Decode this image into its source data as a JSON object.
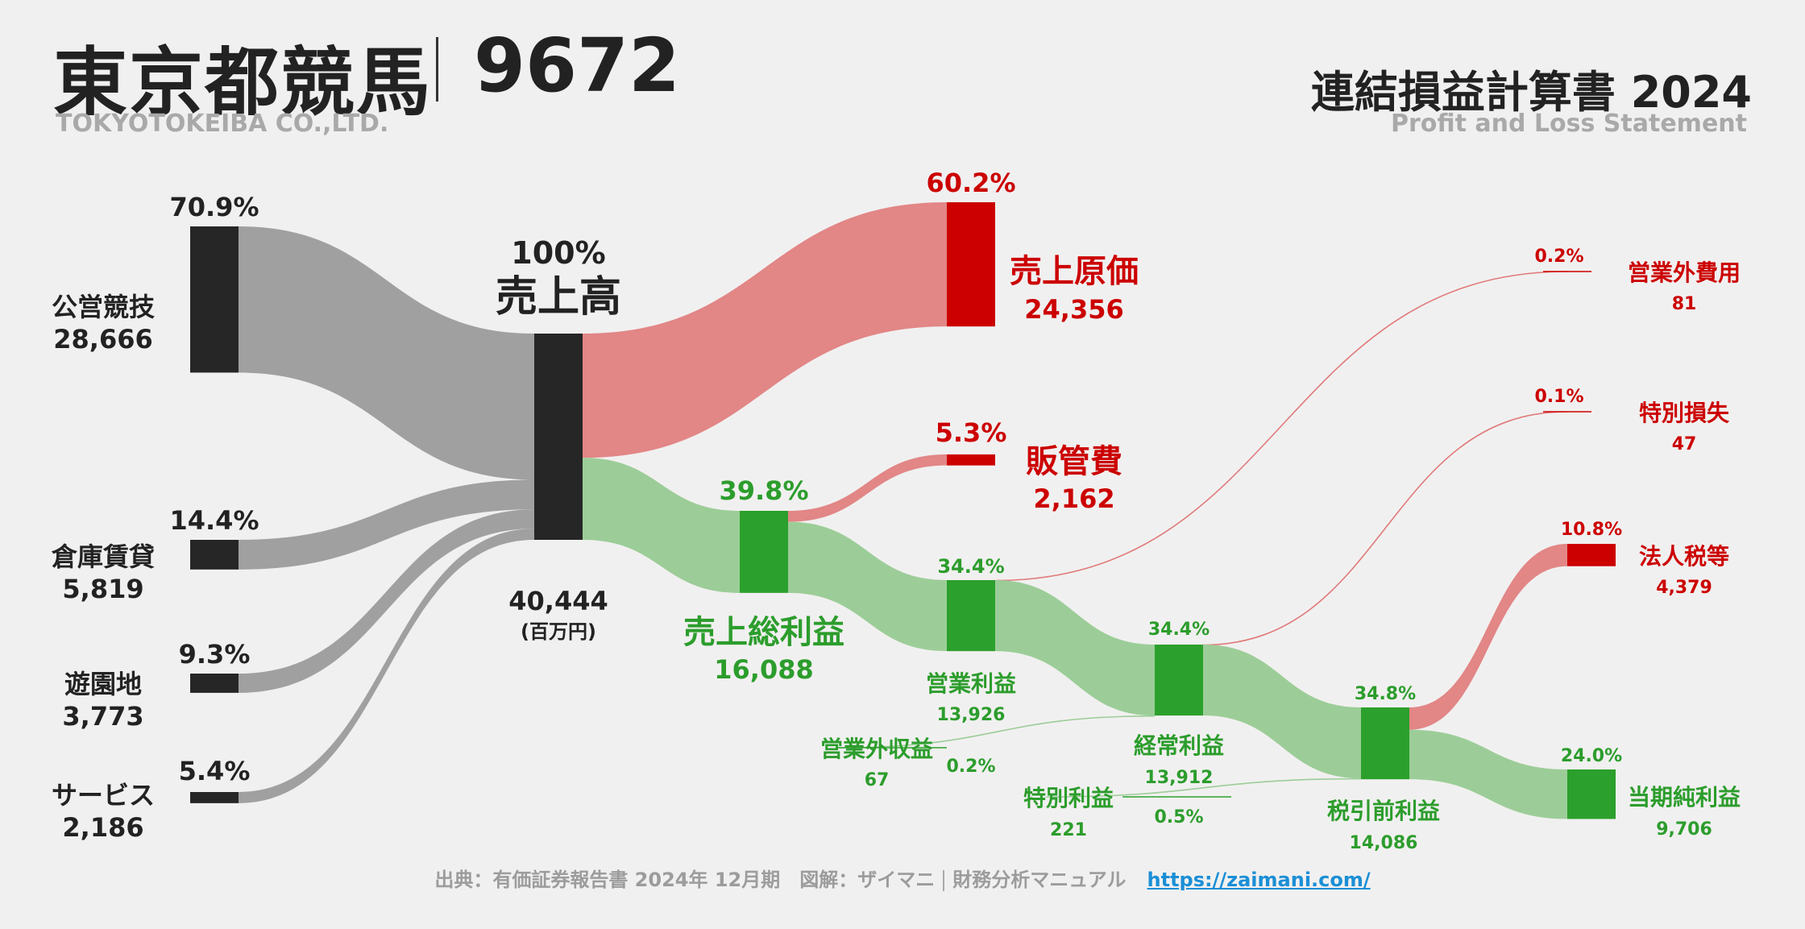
{
  "header": {
    "company": "東京都競馬",
    "code": "9672",
    "company_en": "TOKYOTOKEIBA CO.,LTD.",
    "statement": "連結損益計算書 2024",
    "statement_en": "Profit and Loss Statement"
  },
  "footer": {
    "source": "出典：有価証券報告書 2024年 12月期　図解：ザイマニ",
    "brand": "財務分析マニュアル",
    "url": "https://zaimani.com/"
  },
  "colors": {
    "node_dark": "#262626",
    "node_red": "#cc0000",
    "node_green": "#2ca02c",
    "flow_gray": "#a0a0a0",
    "flow_red": "#e28686",
    "flow_green": "#9ccd98",
    "text_red": "#cc0000",
    "text_green": "#2c9d2c",
    "text_dark": "#222222"
  },
  "chart_data": {
    "type": "sankey",
    "unit": "(百万円)",
    "nodes": [
      {
        "id": "koei",
        "label": "公営競技",
        "value": 28666,
        "pct": "70.9%"
      },
      {
        "id": "soko",
        "label": "倉庫賃貸",
        "value": 5819,
        "pct": "14.4%"
      },
      {
        "id": "yuen",
        "label": "遊園地",
        "value": 3773,
        "pct": "9.3%"
      },
      {
        "id": "service",
        "label": "サービス",
        "value": 2186,
        "pct": "5.4%"
      },
      {
        "id": "revenue",
        "label": "売上高",
        "value": 40444,
        "pct": "100%"
      },
      {
        "id": "cogs",
        "label": "売上原価",
        "value": 24356,
        "pct": "60.2%"
      },
      {
        "id": "gross",
        "label": "売上総利益",
        "value": 16088,
        "pct": "39.8%"
      },
      {
        "id": "sga",
        "label": "販管費",
        "value": 2162,
        "pct": "5.3%"
      },
      {
        "id": "op",
        "label": "営業利益",
        "value": 13926,
        "pct": "34.4%"
      },
      {
        "id": "nonop_inc",
        "label": "営業外収益",
        "value": 67,
        "pct": "0.2%"
      },
      {
        "id": "nonop_exp",
        "label": "営業外費用",
        "value": 81,
        "pct": "0.2%"
      },
      {
        "id": "ordinary",
        "label": "経常利益",
        "value": 13912,
        "pct": "34.4%"
      },
      {
        "id": "ext_gain",
        "label": "特別利益",
        "value": 221,
        "pct": "0.5%"
      },
      {
        "id": "ext_loss",
        "label": "特別損失",
        "value": 47,
        "pct": "0.1%"
      },
      {
        "id": "pretax",
        "label": "税引前利益",
        "value": 14086,
        "pct": "34.8%"
      },
      {
        "id": "tax",
        "label": "法人税等",
        "value": 4379,
        "pct": "10.8%"
      },
      {
        "id": "net",
        "label": "当期純利益",
        "value": 9706,
        "pct": "24.0%"
      }
    ],
    "links": [
      {
        "source": "koei",
        "target": "revenue",
        "value": 28666
      },
      {
        "source": "soko",
        "target": "revenue",
        "value": 5819
      },
      {
        "source": "yuen",
        "target": "revenue",
        "value": 3773
      },
      {
        "source": "service",
        "target": "revenue",
        "value": 2186
      },
      {
        "source": "revenue",
        "target": "cogs",
        "value": 24356
      },
      {
        "source": "revenue",
        "target": "gross",
        "value": 16088
      },
      {
        "source": "gross",
        "target": "sga",
        "value": 2162
      },
      {
        "source": "gross",
        "target": "op",
        "value": 13926
      },
      {
        "source": "op",
        "target": "nonop_exp",
        "value": 81
      },
      {
        "source": "op",
        "target": "ordinary",
        "value": 13926
      },
      {
        "source": "nonop_inc",
        "target": "ordinary",
        "value": 67
      },
      {
        "source": "ordinary",
        "target": "ext_loss",
        "value": 47
      },
      {
        "source": "ordinary",
        "target": "pretax",
        "value": 13912
      },
      {
        "source": "ext_gain",
        "target": "pretax",
        "value": 221
      },
      {
        "source": "pretax",
        "target": "tax",
        "value": 4379
      },
      {
        "source": "pretax",
        "target": "net",
        "value": 9706
      }
    ]
  }
}
